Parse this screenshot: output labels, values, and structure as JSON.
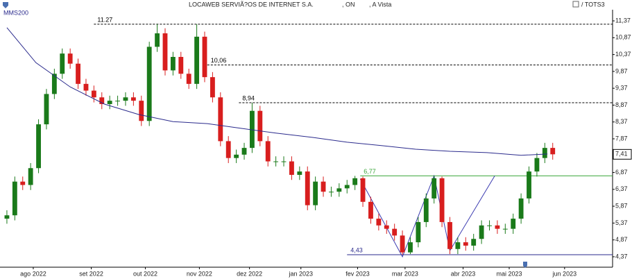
{
  "chart_data": {
    "type": "candlestick",
    "title": "LOCAWEB SERVIÃ?OS DE INTERNET S.A.",
    "share_class": ", ON",
    "market": ", A Vista",
    "compare": "/ TOTS3",
    "up_color": "#1a7a1a",
    "down_color": "#d81e1e",
    "x": [
      0,
      3,
      6,
      9,
      12,
      15,
      18,
      21,
      24,
      27,
      30,
      33,
      36,
      39,
      42,
      45,
      48,
      51,
      54,
      57,
      60,
      63,
      66,
      69,
      72,
      75,
      78,
      81,
      84,
      87,
      90,
      93,
      96,
      99,
      102,
      105,
      108,
      111,
      114,
      117,
      120,
      123,
      126,
      129,
      132,
      135,
      138,
      141,
      144,
      147,
      150,
      153,
      156,
      159,
      162,
      165,
      168,
      171,
      174,
      177,
      180,
      183,
      186,
      189,
      192,
      195,
      198,
      201,
      204,
      207
    ],
    "open": [
      5.5,
      5.6,
      6.6,
      6.5,
      7.0,
      8.3,
      9.2,
      9.8,
      10.4,
      10.1,
      9.5,
      9.3,
      9.1,
      8.9,
      9.0,
      9.0,
      9.1,
      9.0,
      8.4,
      10.6,
      11.0,
      9.9,
      10.3,
      9.8,
      9.5,
      10.9,
      9.7,
      9.1,
      7.8,
      7.3,
      7.4,
      7.6,
      8.7,
      7.8,
      7.2,
      7.2,
      7.2,
      6.8,
      6.9,
      5.9,
      6.6,
      6.3,
      6.3,
      6.4,
      6.5,
      6.7,
      6.0,
      5.5,
      5.3,
      5.2,
      5.0,
      4.5,
      4.8,
      5.4,
      6.1,
      6.7,
      5.4,
      4.6,
      4.8,
      4.7,
      4.9,
      5.3,
      5.3,
      5.2,
      5.2,
      5.5,
      6.1,
      6.9,
      7.3,
      7.6
    ],
    "high": [
      5.75,
      6.75,
      6.75,
      7.15,
      8.45,
      9.35,
      9.95,
      10.55,
      10.55,
      10.25,
      9.65,
      9.45,
      9.25,
      9.15,
      9.15,
      9.25,
      9.25,
      9.15,
      10.75,
      11.27,
      11.15,
      10.45,
      10.45,
      9.95,
      11.27,
      11.05,
      9.85,
      9.25,
      7.95,
      7.55,
      7.75,
      8.94,
      8.85,
      7.95,
      7.35,
      7.35,
      7.35,
      7.05,
      7.05,
      6.75,
      6.75,
      6.45,
      6.55,
      6.65,
      6.77,
      6.75,
      6.15,
      5.65,
      5.45,
      5.35,
      5.15,
      4.95,
      5.55,
      6.25,
      6.77,
      6.75,
      5.55,
      4.95,
      4.95,
      5.05,
      5.45,
      5.45,
      5.45,
      5.35,
      5.65,
      6.25,
      7.05,
      7.45,
      7.75,
      7.75
    ],
    "low": [
      5.35,
      5.45,
      6.35,
      6.35,
      6.85,
      8.15,
      9.05,
      9.65,
      9.95,
      9.35,
      9.15,
      8.95,
      8.75,
      8.75,
      8.85,
      8.85,
      8.85,
      8.25,
      8.25,
      10.45,
      9.75,
      9.75,
      9.65,
      9.35,
      9.35,
      9.55,
      8.95,
      7.65,
      7.15,
      7.15,
      7.25,
      7.45,
      7.65,
      7.05,
      7.05,
      7.05,
      6.65,
      6.65,
      5.75,
      5.75,
      6.15,
      6.15,
      6.15,
      6.25,
      6.35,
      5.85,
      5.35,
      5.15,
      5.05,
      4.85,
      4.43,
      4.45,
      4.65,
      5.25,
      5.95,
      5.25,
      4.45,
      4.45,
      4.55,
      4.55,
      4.75,
      5.15,
      5.05,
      5.05,
      5.05,
      5.35,
      5.95,
      6.75,
      7.15,
      7.25
    ],
    "close": [
      5.6,
      6.6,
      6.5,
      7.0,
      8.3,
      9.2,
      9.8,
      10.4,
      10.1,
      9.5,
      9.3,
      9.1,
      8.9,
      9.0,
      9.0,
      9.1,
      9.0,
      8.4,
      10.6,
      11.0,
      9.9,
      10.3,
      9.8,
      9.5,
      10.9,
      9.7,
      9.1,
      7.8,
      7.3,
      7.4,
      7.6,
      8.7,
      7.8,
      7.2,
      7.2,
      7.2,
      6.8,
      6.9,
      5.9,
      6.6,
      6.3,
      6.3,
      6.4,
      6.5,
      6.7,
      6.0,
      5.5,
      5.3,
      5.2,
      5.0,
      4.5,
      4.8,
      5.4,
      6.1,
      6.7,
      5.4,
      4.6,
      4.8,
      4.7,
      4.9,
      5.3,
      5.3,
      5.2,
      5.2,
      5.5,
      6.1,
      6.9,
      7.3,
      7.6,
      7.41
    ],
    "series": [
      {
        "name": "MMS200",
        "color": "#2a2a8c",
        "x": [
          0,
          11,
          24,
          37,
          50,
          63,
          76,
          89,
          102,
          116,
          129,
          142,
          155,
          168,
          182,
          195,
          205
        ],
        "values": [
          11.17,
          10.13,
          9.41,
          8.9,
          8.59,
          8.38,
          8.32,
          8.18,
          8.04,
          7.91,
          7.77,
          7.67,
          7.56,
          7.5,
          7.46,
          7.38,
          7.42
        ]
      }
    ],
    "levels": [
      {
        "value": 11.27,
        "label": "11.27",
        "from": 33,
        "color": "#000000",
        "dashed": true
      },
      {
        "value": 10.06,
        "label": "10,06",
        "from": 76,
        "color": "#000000",
        "dashed": true
      },
      {
        "value": 8.94,
        "label": "8,94",
        "from": 88,
        "color": "#000000",
        "dashed": true
      },
      {
        "value": 6.77,
        "label": "6,77",
        "from": 134,
        "color": "#3aa53a",
        "dashed": false
      },
      {
        "value": 4.43,
        "label": "4,43",
        "from": 129,
        "color": "#2a2a8c",
        "dashed": false
      }
    ],
    "drawing": {
      "color": "#3a3ab0",
      "x": [
        134,
        150,
        162,
        168,
        185
      ],
      "y": [
        6.68,
        4.37,
        6.77,
        4.55,
        6.77
      ]
    },
    "last": {
      "value": 7.41,
      "label": "7,41"
    },
    "xlim": [
      -1.3,
      229.7
    ],
    "ylim": [
      4.06,
      11.68
    ],
    "xticks": [
      {
        "value": 10,
        "label": "ago 2022"
      },
      {
        "value": 32,
        "label": "set 2022"
      },
      {
        "value": 52.5,
        "label": "out 2022"
      },
      {
        "value": 73,
        "label": "nov 2022"
      },
      {
        "value": 92,
        "label": "dez 2022"
      },
      {
        "value": 111.5,
        "label": "jan 2023"
      },
      {
        "value": 133,
        "label": "fev 2023"
      },
      {
        "value": 151,
        "label": "mar 2023"
      },
      {
        "value": 173,
        "label": "abr 2023"
      },
      {
        "value": 190.5,
        "label": "mai 2023"
      },
      {
        "value": 211.5,
        "label": "jun 2023"
      }
    ],
    "yticks": [
      {
        "value": 11.37,
        "label": "11,37"
      },
      {
        "value": 10.87,
        "label": "10,87"
      },
      {
        "value": 10.37,
        "label": "10,37"
      },
      {
        "value": 9.87,
        "label": "9,87"
      },
      {
        "value": 9.37,
        "label": "9,37"
      },
      {
        "value": 8.87,
        "label": "8,87"
      },
      {
        "value": 8.37,
        "label": "8,37"
      },
      {
        "value": 7.87,
        "label": "7,87"
      },
      {
        "value": 7.37,
        "label": "7,37"
      },
      {
        "value": 6.87,
        "label": "6,87"
      },
      {
        "value": 6.37,
        "label": "6,37"
      },
      {
        "value": 5.87,
        "label": "5,87"
      },
      {
        "value": 5.37,
        "label": "5,37"
      },
      {
        "value": 4.87,
        "label": "4,87"
      },
      {
        "value": 4.37,
        "label": "4,37"
      }
    ]
  }
}
